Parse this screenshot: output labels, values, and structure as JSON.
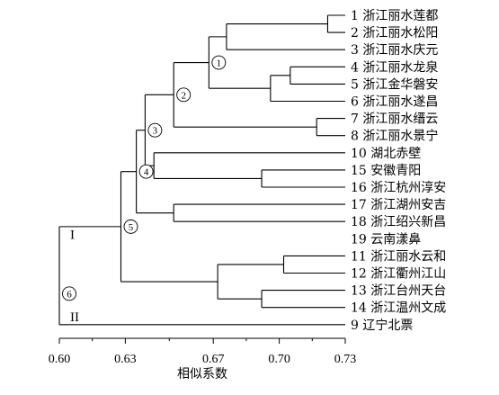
{
  "chart_data": {
    "type": "dendrogram",
    "xlabel": "相似系数",
    "xlim": [
      0.6,
      0.73
    ],
    "ticks": [
      "0.60",
      "0.63",
      "0.67",
      "0.70",
      "0.73"
    ],
    "tick_values": [
      0.6,
      0.63,
      0.67,
      0.7,
      0.73
    ],
    "leaves": [
      "1 浙江丽水莲都",
      "2 浙江丽水松阳",
      "3 浙江丽水庆元",
      "4 浙江丽水龙泉",
      "5 浙江金华磐安",
      "6 浙江丽水遂昌",
      "7 浙江丽水缙云",
      "8 浙江丽水景宁",
      "10 湖北赤壁",
      "15 安徽青阳",
      "16 浙江杭州淳安",
      "17 浙江湖州安吉",
      "18 浙江绍兴新昌",
      "19 云南漾鼻",
      "11 浙江丽水云和",
      "12 浙江衢州江山",
      "13 浙江台州天台",
      "14 浙江温州文成",
      "9 辽宁北票"
    ],
    "merges": [
      {
        "children": [
          "leaf:0",
          "leaf:1"
        ],
        "height": 0.722
      },
      {
        "children": [
          "node:0",
          "leaf:2"
        ],
        "height": 0.676
      },
      {
        "children": [
          "leaf:3",
          "leaf:4"
        ],
        "height": 0.705
      },
      {
        "children": [
          "node:2",
          "leaf:5"
        ],
        "height": 0.696
      },
      {
        "children": [
          "node:1",
          "node:3"
        ],
        "height": 0.668,
        "label": "1"
      },
      {
        "children": [
          "leaf:6",
          "leaf:7"
        ],
        "height": 0.717
      },
      {
        "children": [
          "node:4",
          "node:5"
        ],
        "height": 0.652,
        "label": "2"
      },
      {
        "children": [
          "leaf:9",
          "leaf:10"
        ],
        "height": 0.692
      },
      {
        "children": [
          "leaf:8",
          "node:7"
        ],
        "height": 0.643
      },
      {
        "children": [
          "node:6",
          "node:8"
        ],
        "height": 0.639,
        "label": "3"
      },
      {
        "children": [
          "leaf:11",
          "leaf:12"
        ],
        "height": 0.652
      },
      {
        "children": [
          "node:9",
          "node:10"
        ],
        "height": 0.635,
        "label": "4"
      },
      {
        "children": [
          "leaf:14",
          "leaf:15"
        ],
        "height": 0.702
      },
      {
        "children": [
          "leaf:16",
          "leaf:17"
        ],
        "height": 0.692
      },
      {
        "children": [
          "node:12",
          "node:13"
        ],
        "height": 0.672
      },
      {
        "children": [
          "node:11",
          "node:14"
        ],
        "height": 0.628,
        "label": "5"
      },
      {
        "children": [
          "node:15",
          "leaf:18"
        ],
        "height": 0.6,
        "label": "6"
      }
    ],
    "group_labels": [
      "I",
      "II"
    ]
  }
}
